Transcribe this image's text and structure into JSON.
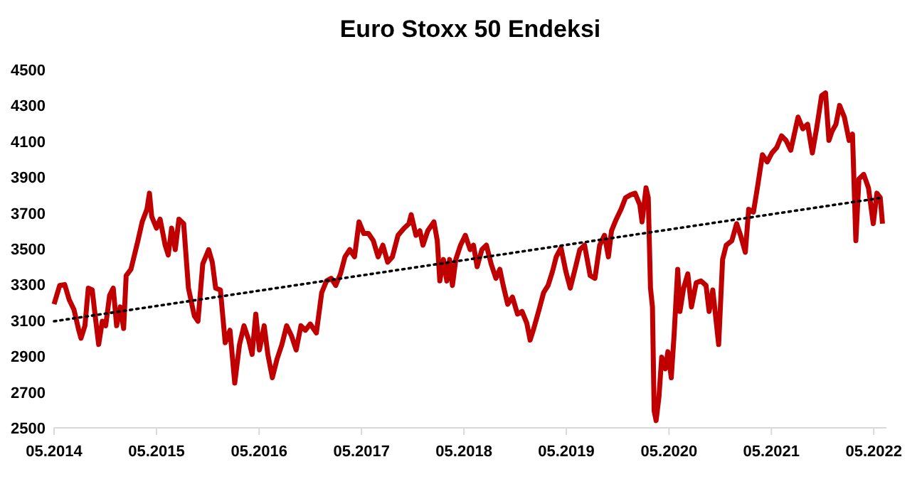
{
  "chart_data": {
    "type": "line",
    "title": "Euro Stoxx 50 Endeksi",
    "xlim": [
      "2014-05-01",
      "2022-06-15"
    ],
    "xticks": [
      {
        "value": "2014-05-01",
        "label": "05.2014"
      },
      {
        "value": "2015-05-01",
        "label": "05.2015"
      },
      {
        "value": "2016-05-01",
        "label": "05.2016"
      },
      {
        "value": "2017-05-01",
        "label": "05.2017"
      },
      {
        "value": "2018-05-01",
        "label": "05.2018"
      },
      {
        "value": "2019-05-01",
        "label": "05.2019"
      },
      {
        "value": "2020-05-01",
        "label": "05.2020"
      },
      {
        "value": "2021-05-01",
        "label": "05.2021"
      },
      {
        "value": "2022-05-01",
        "label": "05.2022"
      }
    ],
    "ylim": [
      2500,
      4500
    ],
    "yticks": [
      2500,
      2700,
      2900,
      3100,
      3300,
      3500,
      3700,
      3900,
      4100,
      4300,
      4500
    ],
    "grid": false,
    "series": [
      {
        "color": "#c00000",
        "line_style": "solid",
        "x": [
          "2014-05-01",
          "2014-05-21",
          "2014-06-08",
          "2014-06-24",
          "2014-07-11",
          "2014-07-28",
          "2014-08-05",
          "2014-08-19",
          "2014-08-31",
          "2014-09-14",
          "2014-09-25",
          "2014-10-07",
          "2014-10-20",
          "2014-11-01",
          "2014-11-15",
          "2014-11-28",
          "2014-12-10",
          "2014-12-23",
          "2015-01-04",
          "2015-01-13",
          "2015-01-30",
          "2015-02-24",
          "2015-03-11",
          "2015-03-28",
          "2015-04-06",
          "2015-04-14",
          "2015-05-01",
          "2015-05-14",
          "2015-06-01",
          "2015-06-12",
          "2015-06-24",
          "2015-07-07",
          "2015-07-20",
          "2015-08-06",
          "2015-08-23",
          "2015-09-13",
          "2015-09-26",
          "2015-10-13",
          "2015-11-03",
          "2015-11-16",
          "2015-11-28",
          "2015-12-15",
          "2016-01-01",
          "2016-01-18",
          "2016-02-04",
          "2016-02-21",
          "2016-03-08",
          "2016-03-25",
          "2016-04-06",
          "2016-04-19",
          "2016-05-02",
          "2016-05-19",
          "2016-06-01",
          "2016-06-17",
          "2016-07-04",
          "2016-07-21",
          "2016-08-07",
          "2016-08-24",
          "2016-09-10",
          "2016-09-27",
          "2016-10-13",
          "2016-10-30",
          "2016-11-21",
          "2016-12-10",
          "2016-12-27",
          "2017-01-13",
          "2017-01-29",
          "2017-02-15",
          "2017-03-03",
          "2017-03-20",
          "2017-04-06",
          "2017-04-22",
          "2017-05-09",
          "2017-05-26",
          "2017-06-12",
          "2017-06-29",
          "2017-07-16",
          "2017-08-02",
          "2017-08-19",
          "2017-09-08",
          "2017-09-30",
          "2017-10-17",
          "2017-10-25",
          "2017-11-11",
          "2017-11-25",
          "2017-12-06",
          "2017-12-23",
          "2018-01-14",
          "2018-01-26",
          "2018-02-04",
          "2018-02-17",
          "2018-03-01",
          "2018-03-11",
          "2018-03-21",
          "2018-04-02",
          "2018-04-19",
          "2018-05-06",
          "2018-05-23",
          "2018-06-04",
          "2018-06-17",
          "2018-07-04",
          "2018-07-20",
          "2018-08-06",
          "2018-08-23",
          "2018-09-06",
          "2018-09-18",
          "2018-10-04",
          "2018-10-21",
          "2018-11-08",
          "2018-11-24",
          "2018-12-11",
          "2018-12-23",
          "2019-01-05",
          "2019-01-22",
          "2019-02-09",
          "2019-02-25",
          "2019-03-13",
          "2019-03-26",
          "2019-04-12",
          "2019-04-29",
          "2019-05-15",
          "2019-06-01",
          "2019-06-18",
          "2019-07-05",
          "2019-07-25",
          "2019-08-11",
          "2019-08-28",
          "2019-09-14",
          "2019-09-28",
          "2019-10-09",
          "2019-10-26",
          "2019-11-12",
          "2019-11-28",
          "2019-12-15",
          "2020-01-01",
          "2020-01-18",
          "2020-01-26",
          "2020-02-09",
          "2020-02-17",
          "2020-02-25",
          "2020-03-03",
          "2020-03-09",
          "2020-03-16",
          "2020-03-26",
          "2020-04-05",
          "2020-04-18",
          "2020-04-27",
          "2020-05-09",
          "2020-05-19",
          "2020-06-01",
          "2020-06-09",
          "2020-06-22",
          "2020-07-07",
          "2020-07-20",
          "2020-08-06",
          "2020-08-23",
          "2020-09-10",
          "2020-09-21",
          "2020-10-04",
          "2020-10-25",
          "2020-11-08",
          "2020-11-21",
          "2020-12-11",
          "2020-12-28",
          "2021-01-11",
          "2021-01-28",
          "2021-02-09",
          "2021-02-26",
          "2021-03-13",
          "2021-03-30",
          "2021-04-16",
          "2021-05-03",
          "2021-05-20",
          "2021-06-06",
          "2021-06-22",
          "2021-07-09",
          "2021-08-04",
          "2021-08-21",
          "2021-09-07",
          "2021-09-24",
          "2021-10-10",
          "2021-10-27",
          "2021-11-10",
          "2021-11-22",
          "2021-12-03",
          "2021-12-17",
          "2021-12-30",
          "2022-01-16",
          "2022-02-02",
          "2022-02-14",
          "2022-02-26",
          "2022-03-09",
          "2022-03-26",
          "2022-04-12",
          "2022-04-29",
          "2022-05-12",
          "2022-05-24",
          "2022-06-01"
        ],
        "values": [
          3190,
          3295,
          3300,
          3215,
          3160,
          3045,
          3000,
          3070,
          3280,
          3270,
          3120,
          2965,
          3095,
          3070,
          3240,
          3280,
          3070,
          3175,
          3055,
          3350,
          3385,
          3545,
          3650,
          3720,
          3810,
          3680,
          3615,
          3665,
          3520,
          3465,
          3615,
          3495,
          3665,
          3640,
          3280,
          3125,
          3095,
          3415,
          3495,
          3425,
          3280,
          3270,
          2975,
          3045,
          2750,
          2965,
          3070,
          2990,
          2910,
          3135,
          2935,
          3070,
          2910,
          2780,
          2885,
          2965,
          3070,
          3015,
          2935,
          3070,
          3045,
          3080,
          3030,
          3255,
          3320,
          3335,
          3295,
          3360,
          3455,
          3495,
          3455,
          3650,
          3585,
          3585,
          3545,
          3455,
          3520,
          3425,
          3455,
          3575,
          3615,
          3640,
          3690,
          3575,
          3600,
          3520,
          3600,
          3650,
          3545,
          3320,
          3440,
          3320,
          3440,
          3295,
          3440,
          3520,
          3575,
          3495,
          3520,
          3400,
          3495,
          3520,
          3415,
          3335,
          3385,
          3295,
          3190,
          3230,
          3135,
          3150,
          3085,
          2990,
          3055,
          3150,
          3255,
          3295,
          3375,
          3455,
          3505,
          3375,
          3280,
          3385,
          3495,
          3520,
          3350,
          3335,
          3520,
          3575,
          3455,
          3600,
          3665,
          3720,
          3785,
          3800,
          3810,
          3745,
          3650,
          3840,
          3785,
          3280,
          3175,
          2595,
          2540,
          2670,
          2895,
          2830,
          2925,
          2780,
          3015,
          3385,
          3150,
          3280,
          3360,
          3175,
          3310,
          3320,
          3295,
          3150,
          3270,
          2965,
          3440,
          3520,
          3545,
          3640,
          3575,
          3480,
          3720,
          3705,
          3850,
          4025,
          3985,
          4035,
          4065,
          4130,
          4105,
          4050,
          4235,
          4170,
          4195,
          4035,
          4180,
          4355,
          4370,
          4105,
          4155,
          4195,
          4300,
          4235,
          4105,
          4140,
          3545,
          3890,
          3915,
          3840,
          3640,
          3810,
          3785,
          3640
        ]
      },
      {
        "color": "#000000",
        "line_style": "dotted",
        "x": [
          "2014-05-01",
          "2022-06-01"
        ],
        "values": [
          3095,
          3785
        ]
      }
    ]
  }
}
